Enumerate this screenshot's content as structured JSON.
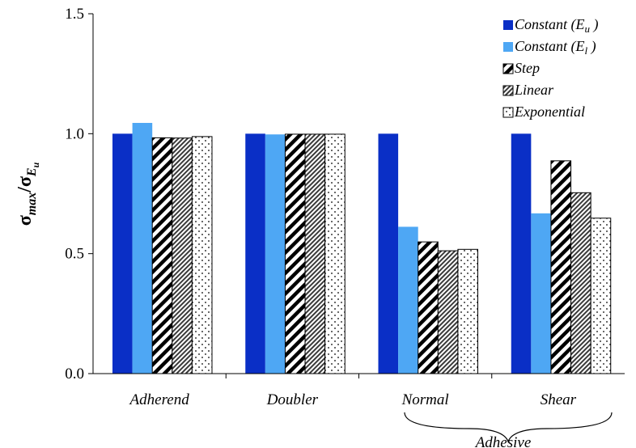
{
  "chart_data": {
    "type": "bar",
    "categories": [
      "Adherend",
      "Doubler",
      "Normal",
      "Shear"
    ],
    "group_label": "Adhesive",
    "series": [
      {
        "name": "Constant (E_u )",
        "label_main": "Constant (E",
        "label_sub": "u",
        "label_end": " )",
        "values": [
          1.0,
          1.0,
          1.0,
          1.0
        ],
        "pattern": "solid",
        "color": "#0a2fc6"
      },
      {
        "name": "Constant (E_l )",
        "label_main": "Constant (E",
        "label_sub": "l",
        "label_end": " )",
        "values": [
          1.045,
          0.997,
          0.612,
          0.668
        ],
        "pattern": "solid",
        "color": "#4ea7f4"
      },
      {
        "name": "Step",
        "label_main": "Step",
        "values": [
          0.983,
          0.998,
          0.549,
          0.887
        ],
        "pattern": "wide-diagonal",
        "color": "#000000"
      },
      {
        "name": "Linear",
        "label_main": "Linear",
        "values": [
          0.982,
          0.998,
          0.512,
          0.754
        ],
        "pattern": "dense-diagonal",
        "color": "#000000"
      },
      {
        "name": "Exponential",
        "label_main": "Exponential",
        "values": [
          0.988,
          0.998,
          0.518,
          0.648
        ],
        "pattern": "dots",
        "color": "#000000"
      }
    ],
    "ylabel": {
      "main": "σ",
      "sub1": "max",
      "slash": "/σ",
      "sub2": "E",
      "sub3": "u"
    },
    "ylim": [
      0.0,
      1.5
    ],
    "yticks": [
      "0.0",
      "0.5",
      "1.0",
      "1.5"
    ],
    "grid": false,
    "legend_position": "top-right"
  }
}
